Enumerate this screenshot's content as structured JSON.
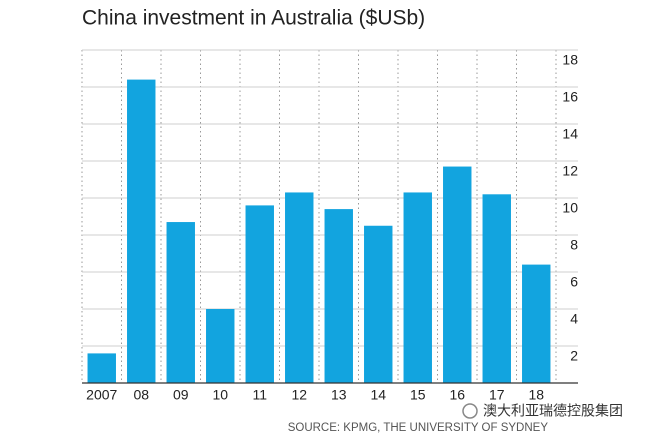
{
  "chart_data": {
    "type": "bar",
    "title": "China investment in Australia ($USb)",
    "categories": [
      "2007",
      "08",
      "09",
      "10",
      "11",
      "12",
      "13",
      "14",
      "15",
      "16",
      "17",
      "18"
    ],
    "values": [
      1.6,
      16.4,
      8.7,
      4.0,
      9.6,
      10.3,
      9.4,
      8.5,
      10.3,
      11.7,
      10.2,
      6.4
    ],
    "color": "#12a4df",
    "ylim": [
      0,
      18
    ],
    "yticks": [
      2,
      4,
      6,
      8,
      10,
      12,
      14,
      16,
      18
    ],
    "grid": true,
    "source": "SOURCE: KPMG, THE UNIVERSITY OF SYDNEY",
    "watermark": "澳大利亚瑞德控股集团"
  }
}
